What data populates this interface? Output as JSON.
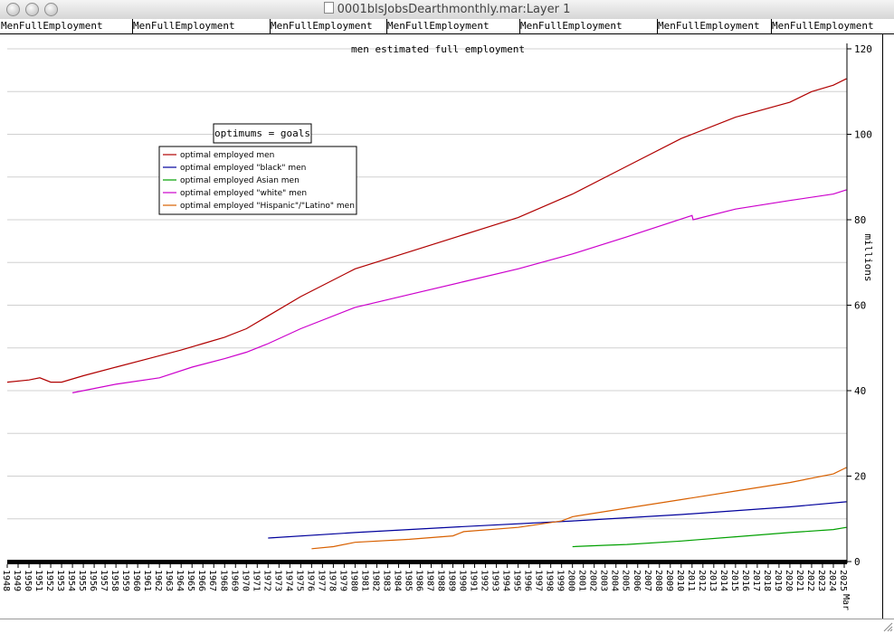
{
  "window": {
    "title": "0001blsJobsDearthmonthly.mar:Layer 1",
    "buttons": [
      "close",
      "minimize",
      "zoom"
    ]
  },
  "column_headers": [
    "MenFullEmployment",
    "MenFullEmployment",
    "MenFullEmployment",
    "MenFullEmployment",
    "MenFullEmployment",
    "MenFullEmployment",
    "MenFullEmployment"
  ],
  "colors": {
    "men": "#b00000",
    "black": "#00009c",
    "asian": "#00a000",
    "white": "#cc00cc",
    "hispanic": "#d86000"
  },
  "chart_data": {
    "type": "line",
    "title": "men estimated full employment",
    "ylabel": "millions",
    "xlabel": "",
    "ylim": [
      0,
      120
    ],
    "xlim": [
      1948,
      2025.25
    ],
    "y_ticks": [
      0,
      20,
      40,
      60,
      80,
      100,
      120
    ],
    "x_tick_labels": [
      "1948",
      "1949",
      "1950",
      "1951",
      "1952",
      "1953",
      "1954",
      "1955",
      "1956",
      "1957",
      "1958",
      "1959",
      "1960",
      "1961",
      "1962",
      "1963",
      "1964",
      "1965",
      "1966",
      "1967",
      "1968",
      "1969",
      "1970",
      "1971",
      "1972",
      "1973",
      "1974",
      "1975",
      "1976",
      "1977",
      "1978",
      "1979",
      "1980",
      "1981",
      "1982",
      "1983",
      "1984",
      "1985",
      "1986",
      "1987",
      "1988",
      "1989",
      "1990",
      "1991",
      "1992",
      "1993",
      "1994",
      "1995",
      "1996",
      "1997",
      "1998",
      "1999",
      "2000",
      "2001",
      "2002",
      "2003",
      "2004",
      "2005",
      "2006",
      "2007",
      "2008",
      "2009",
      "2010",
      "2011",
      "2012",
      "2013",
      "2014",
      "2015",
      "2016",
      "2017",
      "2018",
      "2019",
      "2020",
      "2021",
      "2022",
      "2023",
      "2024",
      "2025"
    ],
    "last_tick_suffix": "Mar",
    "grid": true,
    "annotation_box": "optimums = goals",
    "legend_placement": "upper-left",
    "series": [
      {
        "name": "optimal employed men",
        "color_key": "men",
        "x": [
          1948,
          1950,
          1951,
          1952,
          1953,
          1955,
          1958,
          1961,
          1964,
          1966,
          1968,
          1970,
          1972,
          1975,
          1980,
          1985,
          1990,
          1995,
          2000,
          2005,
          2010,
          2015,
          2020,
          2022,
          2024,
          2025.2
        ],
        "y": [
          42,
          42.5,
          43,
          42,
          42,
          43.5,
          45.5,
          47.5,
          49.5,
          51,
          52.5,
          54.5,
          57.5,
          62,
          68.5,
          72.5,
          76.5,
          80.5,
          86,
          92.5,
          99,
          104,
          107.5,
          110,
          111.5,
          113
        ]
      },
      {
        "name": "optimal employed \"black\" men",
        "color_key": "black",
        "x": [
          1972,
          1980,
          1990,
          2000,
          2010,
          2020,
          2025.2
        ],
        "y": [
          5.5,
          6.8,
          8.2,
          9.5,
          11,
          12.8,
          14
        ]
      },
      {
        "name": "optimal employed Asian men",
        "color_key": "asian",
        "x": [
          2000,
          2003,
          2005,
          2010,
          2015,
          2020,
          2024,
          2025.2
        ],
        "y": [
          3.5,
          3.8,
          4,
          4.8,
          5.8,
          6.8,
          7.5,
          8
        ]
      },
      {
        "name": "optimal employed \"white\" men",
        "color_key": "white",
        "x": [
          1954,
          1958,
          1962,
          1965,
          1968,
          1970,
          1972,
          1975,
          1980,
          1985,
          1990,
          1995,
          2000,
          2005,
          2011,
          2011.1,
          2015,
          2020,
          2024,
          2025.2
        ],
        "y": [
          39.5,
          41.5,
          43,
          45.5,
          47.5,
          49,
          51,
          54.5,
          59.5,
          62.5,
          65.5,
          68.5,
          72,
          76,
          81,
          80,
          82.5,
          84.5,
          86,
          87
        ]
      },
      {
        "name": "optimal employed \"Hispanic\"/\"Latino\" men",
        "color_key": "hispanic",
        "x": [
          1976,
          1978,
          1980,
          1985,
          1989,
          1990,
          1995,
          1999,
          2000,
          2005,
          2010,
          2015,
          2020,
          2024,
          2025.2
        ],
        "y": [
          3,
          3.5,
          4.5,
          5.2,
          6,
          7,
          8,
          9.5,
          10.5,
          12.5,
          14.5,
          16.5,
          18.5,
          20.5,
          22
        ]
      }
    ]
  }
}
